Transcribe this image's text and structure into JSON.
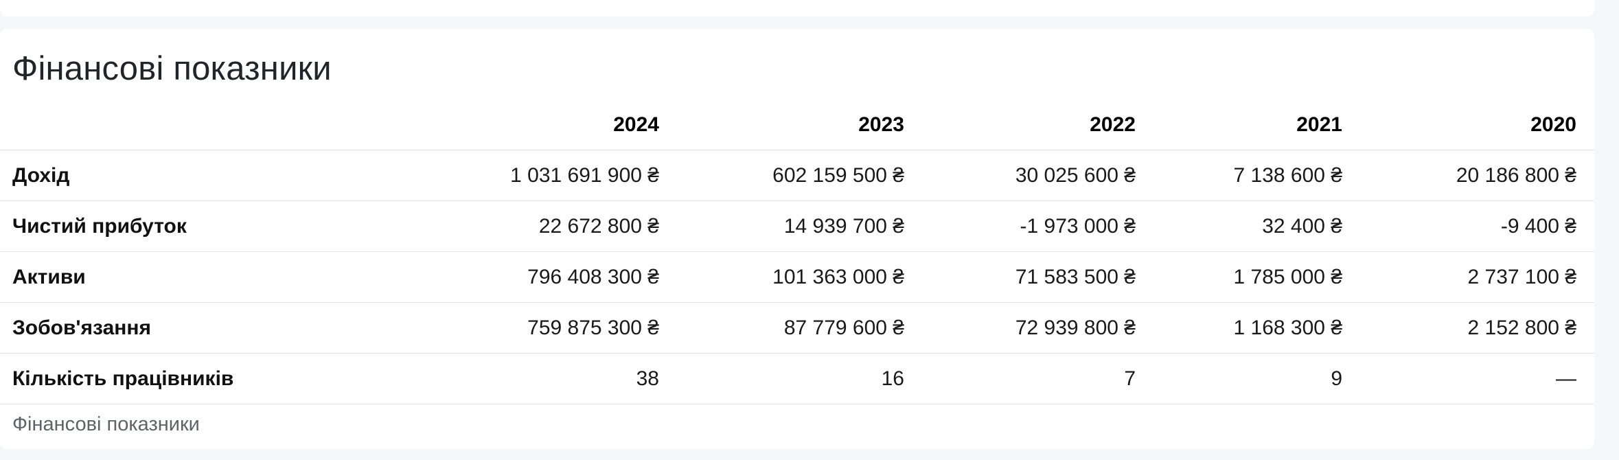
{
  "section": {
    "title": "Фінансові показники",
    "caption": "Фінансові показники"
  },
  "table": {
    "years": [
      "2024",
      "2023",
      "2022",
      "2021",
      "2020"
    ],
    "rows": [
      {
        "label": "Дохід",
        "values": [
          "1 031 691 900 ₴",
          "602 159 500 ₴",
          "30 025 600 ₴",
          "7 138 600 ₴",
          "20 186 800 ₴"
        ]
      },
      {
        "label": "Чистий прибуток",
        "values": [
          "22 672 800 ₴",
          "14 939 700 ₴",
          "-1 973 000 ₴",
          "32 400 ₴",
          "-9 400 ₴"
        ]
      },
      {
        "label": "Активи",
        "values": [
          "796 408 300 ₴",
          "101 363 000 ₴",
          "71 583 500 ₴",
          "1 785 000 ₴",
          "2 737 100 ₴"
        ]
      },
      {
        "label": "Зобов'язання",
        "values": [
          "759 875 300 ₴",
          "87 779 600 ₴",
          "72 939 800 ₴",
          "1 168 300 ₴",
          "2 152 800 ₴"
        ]
      },
      {
        "label": "Кількість працівників",
        "values": [
          "38",
          "16",
          "7",
          "9",
          "—"
        ]
      }
    ]
  }
}
